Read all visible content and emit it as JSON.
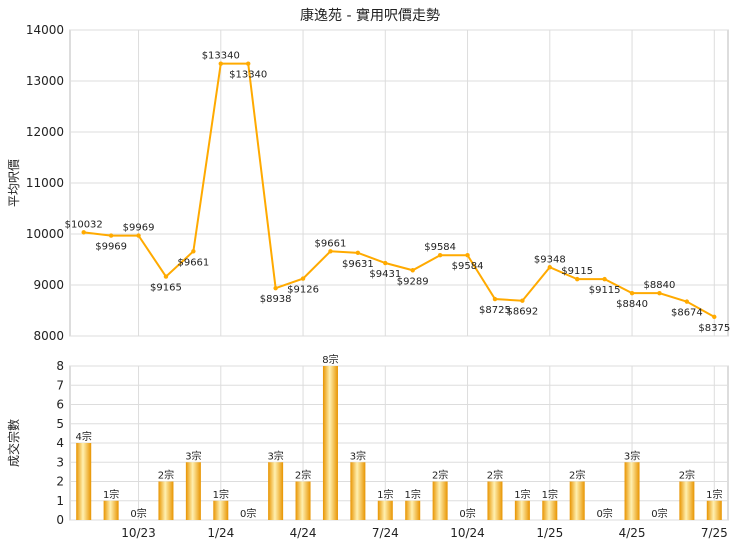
{
  "chart_data": [
    {
      "type": "line",
      "title": "康逸苑 - 實用呎價走勢",
      "ylabel": "平均呎價",
      "ylim": [
        8000,
        14000
      ],
      "yticks": [
        8000,
        9000,
        10000,
        11000,
        12000,
        13000,
        14000
      ],
      "grid": true,
      "color": "#ffaa00",
      "points": [
        {
          "i": 0,
          "value": 10032,
          "label": "$10032"
        },
        {
          "i": 1,
          "value": 9969,
          "label": "$9969"
        },
        {
          "i": 2,
          "value": 9969,
          "label": "$9969"
        },
        {
          "i": 3,
          "value": 9165,
          "label": "$9165"
        },
        {
          "i": 4,
          "value": 9661,
          "label": "$9661"
        },
        {
          "i": 5,
          "value": 13340,
          "label": "$13340"
        },
        {
          "i": 6,
          "value": 13340,
          "label": "$13340"
        },
        {
          "i": 7,
          "value": 8938,
          "label": "$8938"
        },
        {
          "i": 8,
          "value": 9126,
          "label": "$9126"
        },
        {
          "i": 9,
          "value": 9661,
          "label": "$9661"
        },
        {
          "i": 10,
          "value": 9631,
          "label": "$9631"
        },
        {
          "i": 11,
          "value": 9431,
          "label": "$9431"
        },
        {
          "i": 12,
          "value": 9289,
          "label": "$9289"
        },
        {
          "i": 13,
          "value": 9584,
          "label": "$9584"
        },
        {
          "i": 14,
          "value": 9584,
          "label": "$9584"
        },
        {
          "i": 15,
          "value": 8725,
          "label": "$8725"
        },
        {
          "i": 16,
          "value": 8692,
          "label": "$8692"
        },
        {
          "i": 17,
          "value": 9348,
          "label": "$9348"
        },
        {
          "i": 18,
          "value": 9115,
          "label": "$9115"
        },
        {
          "i": 19,
          "value": 9115,
          "label": "$9115"
        },
        {
          "i": 20,
          "value": 8840,
          "label": "$8840"
        },
        {
          "i": 21,
          "value": 8840,
          "label": "$8840"
        },
        {
          "i": 22,
          "value": 8674,
          "label": "$8674"
        },
        {
          "i": 23,
          "value": 8375,
          "label": "$8375"
        }
      ]
    },
    {
      "type": "bar",
      "ylabel": "成交宗數",
      "ylim": [
        0,
        8
      ],
      "yticks": [
        0,
        1,
        2,
        3,
        4,
        5,
        6,
        7,
        8
      ],
      "grid": true,
      "categories": [
        "",
        "",
        "10/23",
        "",
        "",
        "1/24",
        "",
        "",
        "4/24",
        "",
        "",
        "7/24",
        "",
        "",
        "10/24",
        "",
        "",
        "1/25",
        "",
        "",
        "4/25",
        "",
        "",
        "7/25"
      ],
      "values": [
        4,
        1,
        0,
        2,
        3,
        1,
        0,
        3,
        2,
        8,
        3,
        1,
        1,
        2,
        0,
        2,
        1,
        1,
        2,
        0,
        3,
        0,
        2,
        1
      ],
      "labels": [
        "4宗",
        "1宗",
        "0宗",
        "2宗",
        "3宗",
        "1宗",
        "0宗",
        "3宗",
        "2宗",
        "8宗",
        "3宗",
        "1宗",
        "1宗",
        "2宗",
        "0宗",
        "2宗",
        "1宗",
        "1宗",
        "2宗",
        "0宗",
        "3宗",
        "0宗",
        "2宗",
        "1宗"
      ],
      "xtick_labels": [
        "10/23",
        "1/24",
        "4/24",
        "7/24",
        "10/24",
        "1/25",
        "4/25",
        "7/25"
      ]
    }
  ]
}
